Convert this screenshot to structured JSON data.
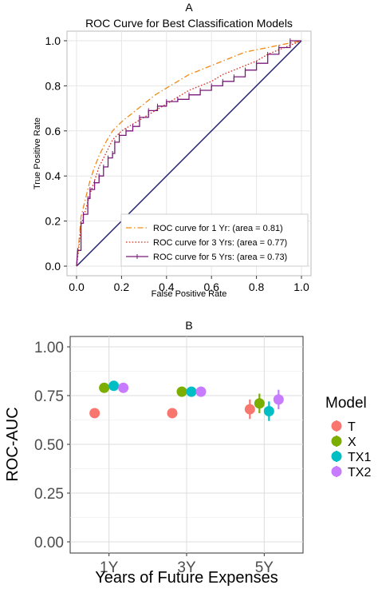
{
  "chart_data": [
    {
      "type": "line",
      "panel_label": "A",
      "title": "ROC Curve for Best Classification Models",
      "xlabel": "False Positive Rate",
      "ylabel": "True Positive Rate",
      "xlim": [
        0,
        1
      ],
      "ylim": [
        0,
        1
      ],
      "x_ticks": [
        "0.0",
        "0.2",
        "0.4",
        "0.6",
        "0.8",
        "1.0"
      ],
      "y_ticks": [
        "0.0",
        "0.2",
        "0.4",
        "0.6",
        "0.8",
        "1.0"
      ],
      "grid": true,
      "legend_position": "bottom-right",
      "diagonal": [
        [
          0,
          0
        ],
        [
          1,
          1
        ]
      ],
      "colors": {
        "s1": "#f08a1a",
        "s2": "#d7301f",
        "s3": "#7a1a7a",
        "diag": "#1c1c6e"
      },
      "series": [
        {
          "name": "ROC curve for 1 Yr: (area = 0.81)",
          "style": "dashdot",
          "points": [
            [
              0,
              0
            ],
            [
              0.01,
              0.1
            ],
            [
              0.02,
              0.22
            ],
            [
              0.04,
              0.3
            ],
            [
              0.06,
              0.38
            ],
            [
              0.08,
              0.44
            ],
            [
              0.1,
              0.49
            ],
            [
              0.13,
              0.55
            ],
            [
              0.16,
              0.6
            ],
            [
              0.2,
              0.64
            ],
            [
              0.25,
              0.68
            ],
            [
              0.3,
              0.72
            ],
            [
              0.35,
              0.76
            ],
            [
              0.4,
              0.79
            ],
            [
              0.45,
              0.82
            ],
            [
              0.5,
              0.85
            ],
            [
              0.55,
              0.87
            ],
            [
              0.6,
              0.89
            ],
            [
              0.65,
              0.91
            ],
            [
              0.7,
              0.93
            ],
            [
              0.75,
              0.95
            ],
            [
              0.8,
              0.96
            ],
            [
              0.85,
              0.97
            ],
            [
              0.9,
              0.98
            ],
            [
              0.95,
              0.99
            ],
            [
              1,
              1
            ]
          ]
        },
        {
          "name": "ROC curve for 3 Yrs: (area = 0.77)",
          "style": "dotted",
          "points": [
            [
              0,
              0
            ],
            [
              0.01,
              0.08
            ],
            [
              0.02,
              0.18
            ],
            [
              0.04,
              0.25
            ],
            [
              0.06,
              0.32
            ],
            [
              0.08,
              0.38
            ],
            [
              0.1,
              0.44
            ],
            [
              0.13,
              0.5
            ],
            [
              0.16,
              0.56
            ],
            [
              0.2,
              0.6
            ],
            [
              0.25,
              0.63
            ],
            [
              0.3,
              0.66
            ],
            [
              0.35,
              0.69
            ],
            [
              0.4,
              0.72
            ],
            [
              0.45,
              0.75
            ],
            [
              0.5,
              0.78
            ],
            [
              0.55,
              0.8
            ],
            [
              0.6,
              0.82
            ],
            [
              0.65,
              0.85
            ],
            [
              0.7,
              0.87
            ],
            [
              0.75,
              0.89
            ],
            [
              0.8,
              0.91
            ],
            [
              0.85,
              0.94
            ],
            [
              0.9,
              0.96
            ],
            [
              0.95,
              0.98
            ],
            [
              1,
              1
            ]
          ]
        },
        {
          "name": "ROC curve for 5 Yrs: (area = 0.73)",
          "style": "solid-step-markers",
          "points": [
            [
              0,
              0
            ],
            [
              0.005,
              0.07
            ],
            [
              0.02,
              0.07
            ],
            [
              0.02,
              0.19
            ],
            [
              0.03,
              0.19
            ],
            [
              0.03,
              0.23
            ],
            [
              0.05,
              0.23
            ],
            [
              0.05,
              0.3
            ],
            [
              0.06,
              0.3
            ],
            [
              0.06,
              0.34
            ],
            [
              0.08,
              0.34
            ],
            [
              0.08,
              0.37
            ],
            [
              0.1,
              0.37
            ],
            [
              0.1,
              0.4
            ],
            [
              0.12,
              0.4
            ],
            [
              0.12,
              0.44
            ],
            [
              0.14,
              0.44
            ],
            [
              0.14,
              0.48
            ],
            [
              0.16,
              0.48
            ],
            [
              0.16,
              0.5
            ],
            [
              0.17,
              0.5
            ],
            [
              0.17,
              0.55
            ],
            [
              0.19,
              0.55
            ],
            [
              0.19,
              0.58
            ],
            [
              0.22,
              0.58
            ],
            [
              0.22,
              0.6
            ],
            [
              0.25,
              0.6
            ],
            [
              0.25,
              0.62
            ],
            [
              0.28,
              0.62
            ],
            [
              0.28,
              0.66
            ],
            [
              0.32,
              0.66
            ],
            [
              0.32,
              0.69
            ],
            [
              0.36,
              0.69
            ],
            [
              0.36,
              0.71
            ],
            [
              0.4,
              0.71
            ],
            [
              0.4,
              0.73
            ],
            [
              0.45,
              0.73
            ],
            [
              0.45,
              0.74
            ],
            [
              0.5,
              0.74
            ],
            [
              0.5,
              0.76
            ],
            [
              0.55,
              0.76
            ],
            [
              0.55,
              0.78
            ],
            [
              0.6,
              0.78
            ],
            [
              0.6,
              0.8
            ],
            [
              0.65,
              0.8
            ],
            [
              0.65,
              0.82
            ],
            [
              0.7,
              0.82
            ],
            [
              0.7,
              0.84
            ],
            [
              0.75,
              0.84
            ],
            [
              0.75,
              0.87
            ],
            [
              0.8,
              0.87
            ],
            [
              0.8,
              0.9
            ],
            [
              0.85,
              0.9
            ],
            [
              0.85,
              0.94
            ],
            [
              0.9,
              0.94
            ],
            [
              0.9,
              0.97
            ],
            [
              0.95,
              0.97
            ],
            [
              0.95,
              1
            ],
            [
              1,
              1
            ]
          ]
        }
      ]
    },
    {
      "type": "scatter",
      "panel_label": "B",
      "title": "",
      "xlabel": "Years of Future Expenses",
      "ylabel": "ROC-AUC",
      "categories": [
        "1Y",
        "3Y",
        "5Y"
      ],
      "ylim": [
        0,
        1
      ],
      "y_ticks": [
        "0.00",
        "0.25",
        "0.50",
        "0.75",
        "1.00"
      ],
      "grid": true,
      "legend_title": "Model",
      "legend_position": "right",
      "series": [
        {
          "name": "T",
          "color": "#f8766d",
          "values": [
            0.66,
            0.66,
            0.68
          ],
          "lower": [
            0.65,
            0.65,
            0.63
          ],
          "upper": [
            0.67,
            0.67,
            0.73
          ]
        },
        {
          "name": "X",
          "color": "#7cae00",
          "values": [
            0.79,
            0.77,
            0.71
          ],
          "lower": [
            0.78,
            0.76,
            0.66
          ],
          "upper": [
            0.8,
            0.78,
            0.76
          ]
        },
        {
          "name": "TX1",
          "color": "#00bfc4",
          "values": [
            0.8,
            0.77,
            0.67
          ],
          "lower": [
            0.79,
            0.76,
            0.62
          ],
          "upper": [
            0.81,
            0.78,
            0.72
          ]
        },
        {
          "name": "TX2",
          "color": "#c77cff",
          "values": [
            0.79,
            0.77,
            0.73
          ],
          "lower": [
            0.78,
            0.76,
            0.68
          ],
          "upper": [
            0.8,
            0.78,
            0.78
          ]
        }
      ]
    }
  ]
}
